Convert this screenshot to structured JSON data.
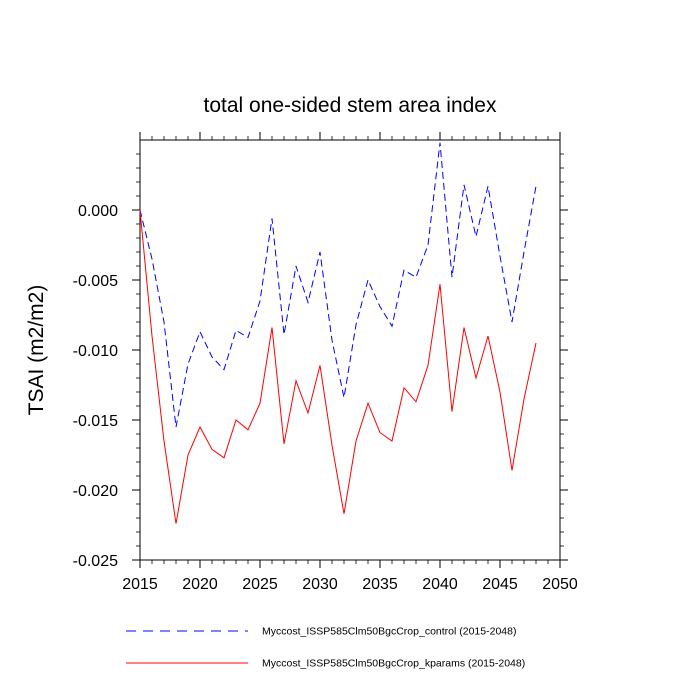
{
  "chart_data": {
    "type": "line",
    "title": "total one-sided stem area index",
    "xlabel": "",
    "ylabel": "TSAI  (m2/m2)",
    "xlim": [
      2015,
      2050
    ],
    "ylim": [
      -0.025,
      0.005
    ],
    "xticks": [
      2015,
      2020,
      2025,
      2030,
      2035,
      2040,
      2045,
      2050
    ],
    "xtick_labels": [
      "2015",
      "2020",
      "2025",
      "2030",
      "2035",
      "2040",
      "2045",
      "2050"
    ],
    "yticks": [
      -0.025,
      -0.02,
      -0.015,
      -0.01,
      -0.005,
      0.0
    ],
    "ytick_labels": [
      "-0.025",
      "-0.020",
      "-0.015",
      "-0.010",
      "-0.005",
      "0.000"
    ],
    "x": [
      2015,
      2016,
      2017,
      2018,
      2019,
      2020,
      2021,
      2022,
      2023,
      2024,
      2025,
      2026,
      2027,
      2028,
      2029,
      2030,
      2031,
      2032,
      2033,
      2034,
      2035,
      2036,
      2037,
      2038,
      2039,
      2040,
      2041,
      2042,
      2043,
      2044,
      2045,
      2046,
      2047,
      2048
    ],
    "series": [
      {
        "name": "Myccost_ISSP585Clm50BgcCrop_control (2015-2048)",
        "color": "#0000ff",
        "style": "dashed",
        "values": [
          0.0,
          -0.0035,
          -0.008,
          -0.0155,
          -0.011,
          -0.0087,
          -0.0105,
          -0.0114,
          -0.0086,
          -0.0091,
          -0.0065,
          -0.0006,
          -0.0089,
          -0.004,
          -0.0066,
          -0.003,
          -0.0093,
          -0.0134,
          -0.0082,
          -0.005,
          -0.0069,
          -0.0083,
          -0.0043,
          -0.0048,
          -0.0025,
          0.0048,
          -0.0048,
          0.0018,
          -0.0019,
          0.0017,
          -0.0033,
          -0.008,
          -0.003,
          0.0017
        ]
      },
      {
        "name": "Myccost_ISSP585Clm50BgcCrop_kparams (2015-2048)",
        "color": "#ff0000",
        "style": "solid",
        "values": [
          0.0,
          -0.009,
          -0.0165,
          -0.0224,
          -0.0175,
          -0.0155,
          -0.0171,
          -0.0177,
          -0.015,
          -0.0157,
          -0.0138,
          -0.0084,
          -0.0167,
          -0.0122,
          -0.0145,
          -0.0111,
          -0.0168,
          -0.0217,
          -0.0165,
          -0.0138,
          -0.0159,
          -0.0165,
          -0.0127,
          -0.0137,
          -0.0111,
          -0.0053,
          -0.0144,
          -0.0084,
          -0.012,
          -0.009,
          -0.013,
          -0.0186,
          -0.0135,
          -0.0095
        ]
      }
    ],
    "legend_position": "bottom"
  }
}
